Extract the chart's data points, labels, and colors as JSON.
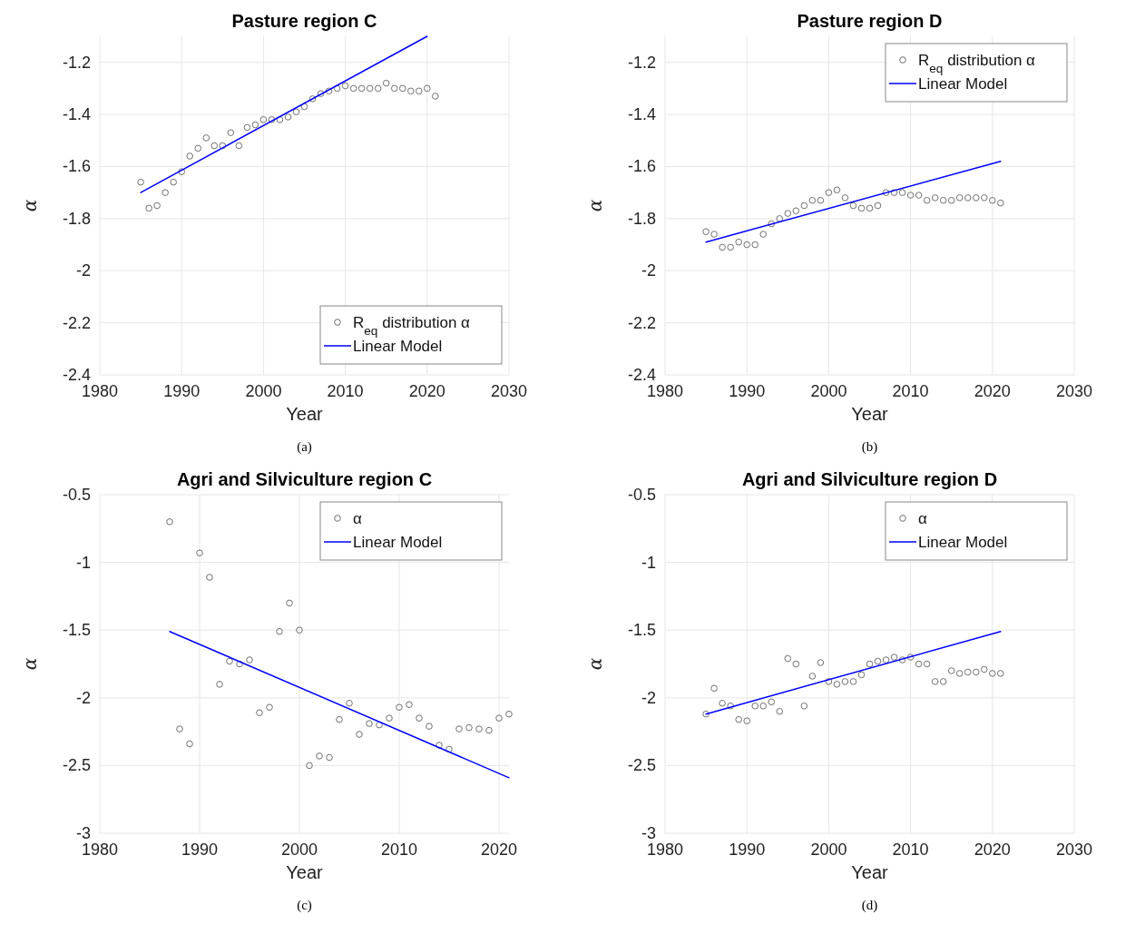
{
  "chart_data": [
    {
      "type": "scatter",
      "title": "Pasture region C",
      "xlabel": "Year",
      "ylabel": "α",
      "xlim": [
        1980,
        2030
      ],
      "xticks": [
        1980,
        1990,
        2000,
        2010,
        2020,
        2030
      ],
      "ylim": [
        -2.4,
        -1.1
      ],
      "yticks": [
        -2.4,
        -2.2,
        -2,
        -1.8,
        -1.6,
        -1.4,
        -1.2
      ],
      "grid": true,
      "legend": "bottom right",
      "annotations": [
        "(a)"
      ],
      "series": [
        {
          "name": "R$_{eq}$ distribution α",
          "marker": "circle",
          "color": "#707070",
          "x": [
            1985,
            1986,
            1987,
            1988,
            1989,
            1990,
            1991,
            1992,
            1993,
            1994,
            1995,
            1996,
            1997,
            1998,
            1999,
            2000,
            2001,
            2002,
            2003,
            2004,
            2005,
            2006,
            2007,
            2008,
            2009,
            2010,
            2011,
            2012,
            2013,
            2014,
            2015,
            2016,
            2017,
            2018,
            2019,
            2020,
            2021
          ],
          "values": [
            -1.66,
            -1.76,
            -1.75,
            -1.7,
            -1.66,
            -1.62,
            -1.56,
            -1.53,
            -1.49,
            -1.52,
            -1.52,
            -1.47,
            -1.52,
            -1.45,
            -1.44,
            -1.42,
            -1.42,
            -1.42,
            -1.41,
            -1.39,
            -1.37,
            -1.34,
            -1.32,
            -1.31,
            -1.3,
            -1.29,
            -1.3,
            -1.3,
            -1.3,
            -1.3,
            -1.28,
            -1.3,
            -1.3,
            -1.31,
            -1.31,
            -1.3,
            -1.33
          ]
        },
        {
          "name": "Linear Model",
          "type": "line",
          "color": "#0000ff",
          "line_style": "solid",
          "x": [
            1985,
            2020
          ],
          "values": [
            -1.7,
            -1.1
          ]
        }
      ]
    },
    {
      "type": "scatter",
      "title": "Pasture region D",
      "xlabel": "Year",
      "ylabel": "α",
      "xlim": [
        1980,
        2030
      ],
      "xticks": [
        1980,
        1990,
        2000,
        2010,
        2020,
        2030
      ],
      "ylim": [
        -2.4,
        -1.1
      ],
      "yticks": [
        -2.4,
        -2.2,
        -2,
        -1.8,
        -1.6,
        -1.4,
        -1.2
      ],
      "grid": true,
      "legend": "top right",
      "annotations": [
        "(b)"
      ],
      "series": [
        {
          "name": "R$_{eq}$ distribution α",
          "marker": "circle",
          "color": "#707070",
          "x": [
            1985,
            1986,
            1987,
            1988,
            1989,
            1990,
            1991,
            1992,
            1993,
            1994,
            1995,
            1996,
            1997,
            1998,
            1999,
            2000,
            2001,
            2002,
            2003,
            2004,
            2005,
            2006,
            2007,
            2008,
            2009,
            2010,
            2011,
            2012,
            2013,
            2014,
            2015,
            2016,
            2017,
            2018,
            2019,
            2020,
            2021
          ],
          "values": [
            -1.85,
            -1.86,
            -1.91,
            -1.91,
            -1.89,
            -1.9,
            -1.9,
            -1.86,
            -1.82,
            -1.8,
            -1.78,
            -1.77,
            -1.75,
            -1.73,
            -1.73,
            -1.7,
            -1.69,
            -1.72,
            -1.75,
            -1.76,
            -1.76,
            -1.75,
            -1.7,
            -1.7,
            -1.7,
            -1.71,
            -1.71,
            -1.73,
            -1.72,
            -1.73,
            -1.73,
            -1.72,
            -1.72,
            -1.72,
            -1.72,
            -1.73,
            -1.74
          ]
        },
        {
          "name": "Linear Model",
          "type": "line",
          "color": "#0000ff",
          "line_style": "solid",
          "x": [
            1985,
            2021
          ],
          "values": [
            -1.89,
            -1.58
          ]
        }
      ]
    },
    {
      "type": "scatter",
      "title": "Agri and Silviculture region C",
      "xlabel": "Year",
      "ylabel": "α",
      "xlim": [
        1980,
        2021
      ],
      "xticks": [
        1980,
        1990,
        2000,
        2010,
        2020
      ],
      "ylim": [
        -3,
        -0.5
      ],
      "yticks": [
        -3,
        -2.5,
        -2,
        -1.5,
        -1,
        -0.5
      ],
      "grid": true,
      "legend": "top right",
      "annotations": [
        "(c)"
      ],
      "series": [
        {
          "name": "α",
          "marker": "circle",
          "color": "#707070",
          "x": [
            1987,
            1988,
            1989,
            1990,
            1991,
            1992,
            1993,
            1994,
            1995,
            1996,
            1997,
            1998,
            1999,
            2000,
            2001,
            2002,
            2003,
            2004,
            2005,
            2006,
            2007,
            2008,
            2009,
            2010,
            2011,
            2012,
            2013,
            2014,
            2015,
            2016,
            2017,
            2018,
            2019,
            2020,
            2021
          ],
          "values": [
            -0.7,
            -2.23,
            -2.34,
            -0.93,
            -1.11,
            -1.9,
            -1.73,
            -1.75,
            -1.72,
            -2.11,
            -2.07,
            -1.51,
            -1.3,
            -1.5,
            -2.5,
            -2.43,
            -2.44,
            -2.16,
            -2.04,
            -2.27,
            -2.19,
            -2.2,
            -2.15,
            -2.07,
            -2.05,
            -2.15,
            -2.21,
            -2.35,
            -2.38,
            -2.23,
            -2.22,
            -2.23,
            -2.24,
            -2.15,
            -2.12
          ]
        },
        {
          "name": "Linear Model",
          "type": "line",
          "color": "#0000ff",
          "line_style": "solid",
          "x": [
            1987,
            2021
          ],
          "values": [
            -1.51,
            -2.59
          ]
        }
      ]
    },
    {
      "type": "scatter",
      "title": "Agri and Silviculture region D",
      "xlabel": "Year",
      "ylabel": "α",
      "xlim": [
        1980,
        2030
      ],
      "xticks": [
        1980,
        1990,
        2000,
        2010,
        2020,
        2030
      ],
      "ylim": [
        -3,
        -0.5
      ],
      "yticks": [
        -3,
        -2.5,
        -2,
        -1.5,
        -1,
        -0.5
      ],
      "grid": true,
      "legend": "top right",
      "annotations": [
        "(d)"
      ],
      "series": [
        {
          "name": "α",
          "marker": "circle",
          "color": "#707070",
          "x": [
            1985,
            1986,
            1987,
            1988,
            1989,
            1990,
            1991,
            1992,
            1993,
            1994,
            1995,
            1996,
            1997,
            1998,
            1999,
            2000,
            2001,
            2002,
            2003,
            2004,
            2005,
            2006,
            2007,
            2008,
            2009,
            2010,
            2011,
            2012,
            2013,
            2014,
            2015,
            2016,
            2017,
            2018,
            2019,
            2020,
            2021
          ],
          "values": [
            -2.12,
            -1.93,
            -2.04,
            -2.06,
            -2.16,
            -2.17,
            -2.06,
            -2.06,
            -2.03,
            -2.1,
            -1.71,
            -1.75,
            -2.06,
            -1.84,
            -1.74,
            -1.88,
            -1.9,
            -1.88,
            -1.88,
            -1.83,
            -1.75,
            -1.73,
            -1.72,
            -1.7,
            -1.72,
            -1.7,
            -1.75,
            -1.75,
            -1.88,
            -1.88,
            -1.8,
            -1.82,
            -1.81,
            -1.81,
            -1.79,
            -1.82,
            -1.82
          ]
        },
        {
          "name": "Linear Model",
          "type": "line",
          "color": "#0000ff",
          "line_style": "solid",
          "x": [
            1985,
            2021
          ],
          "values": [
            -2.12,
            -1.51
          ]
        }
      ]
    }
  ]
}
